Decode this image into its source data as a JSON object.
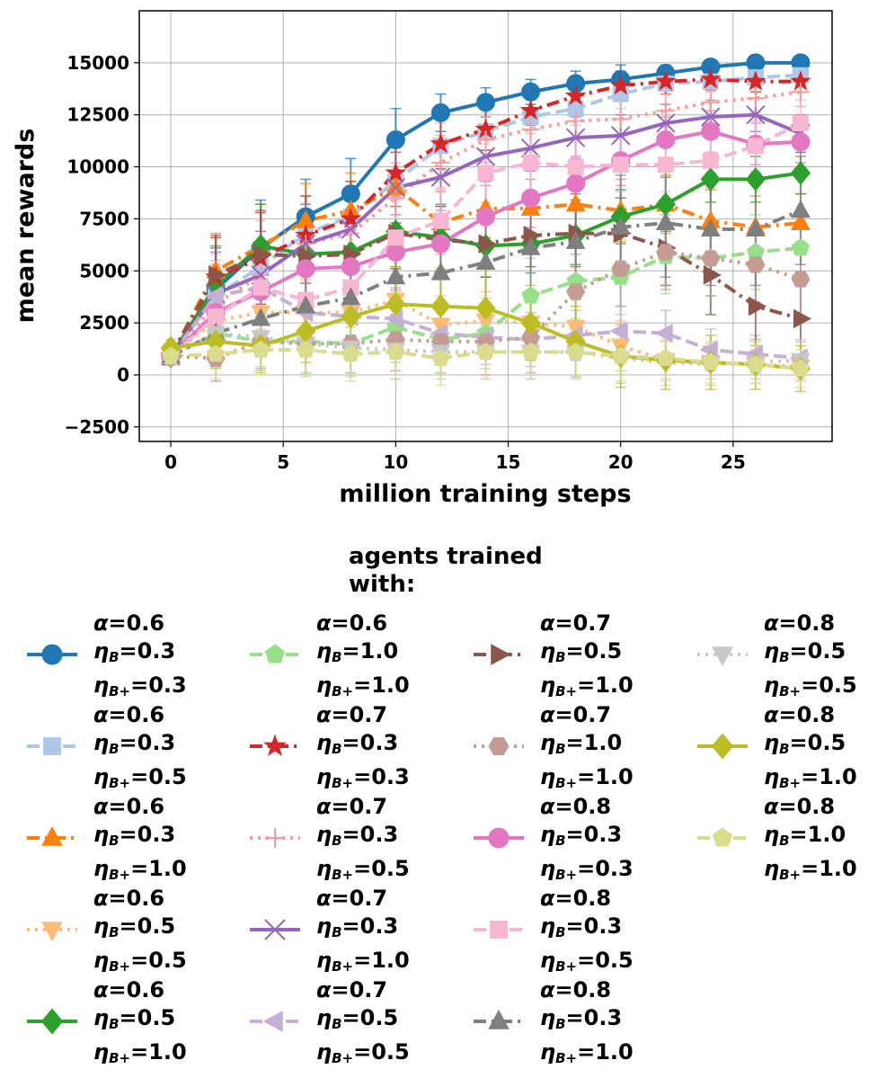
{
  "chart_data": {
    "type": "line",
    "xlabel": "million training steps",
    "ylabel": "mean rewards",
    "xlim": [
      -1.4,
      29.4
    ],
    "ylim": [
      -3200,
      17500
    ],
    "xticks": [
      0,
      5,
      10,
      15,
      20,
      25
    ],
    "yticks": [
      -2500,
      0,
      2500,
      5000,
      7500,
      10000,
      12500,
      15000
    ],
    "xtick_labels": [
      "0",
      "5",
      "10",
      "15",
      "20",
      "25"
    ],
    "ytick_labels": [
      "−2500",
      "0",
      "2500",
      "5000",
      "7500",
      "10000",
      "12500",
      "15000"
    ],
    "grid": true,
    "legend_title": "agents trained with:",
    "x": [
      0,
      2,
      4,
      6,
      8,
      10,
      12,
      14,
      16,
      18,
      20,
      22,
      24,
      26,
      28
    ],
    "series": [
      {
        "alpha": "0.6",
        "eta_b": "0.3",
        "eta_bp": "0.3",
        "color": "#1f77b4",
        "marker": "circle",
        "dash": "solid",
        "values": [
          900,
          4100,
          6100,
          7600,
          8700,
          11300,
          12600,
          13100,
          13600,
          14000,
          14200,
          14500,
          14800,
          15000,
          15000
        ],
        "err": [
          400,
          2000,
          2300,
          1800,
          1700,
          1500,
          900,
          700,
          600,
          600,
          700,
          400,
          300,
          300,
          300
        ]
      },
      {
        "alpha": "0.6",
        "eta_b": "0.3",
        "eta_bp": "0.5",
        "color": "#aec7e8",
        "marker": "square",
        "dash": "dashed",
        "values": [
          900,
          3800,
          5200,
          6800,
          7600,
          9300,
          11000,
          11700,
          12400,
          12800,
          13500,
          14000,
          14100,
          14300,
          14400
        ],
        "err": [
          400,
          2000,
          2200,
          1800,
          1700,
          1600,
          1100,
          900,
          800,
          800,
          700,
          500,
          500,
          500,
          500
        ]
      },
      {
        "alpha": "0.6",
        "eta_b": "0.3",
        "eta_bp": "1.0",
        "color": "#ff7f0e",
        "marker": "triangle-up",
        "dash": "dashdot",
        "values": [
          900,
          5000,
          6200,
          7400,
          7900,
          9000,
          7300,
          8000,
          8000,
          8200,
          7900,
          8200,
          7400,
          7100,
          7300
        ],
        "err": [
          400,
          1800,
          2000,
          1800,
          1800,
          1700,
          1500,
          1400,
          1400,
          1400,
          1500,
          1400,
          1500,
          1500,
          1400
        ]
      },
      {
        "alpha": "0.6",
        "eta_b": "0.5",
        "eta_bp": "0.5",
        "color": "#ffbb78",
        "marker": "triangle-down",
        "dash": "dotted",
        "values": [
          900,
          2600,
          3000,
          3000,
          3000,
          3600,
          2400,
          2600,
          2500,
          2300,
          1400,
          700,
          600,
          500,
          400
        ],
        "err": [
          400,
          1500,
          1600,
          1500,
          1500,
          1500,
          1400,
          1400,
          1400,
          1300,
          1200,
          900,
          800,
          700,
          600
        ]
      },
      {
        "alpha": "0.6",
        "eta_b": "0.5",
        "eta_bp": "1.0",
        "color": "#2ca02c",
        "marker": "diamond",
        "dash": "solid",
        "values": [
          900,
          4300,
          6200,
          5800,
          5900,
          6900,
          6600,
          6200,
          6300,
          6700,
          7600,
          8200,
          9400,
          9400,
          9700
        ],
        "err": [
          400,
          1900,
          2000,
          2000,
          1900,
          1700,
          1600,
          1500,
          1400,
          1400,
          1300,
          1300,
          1100,
          1100,
          1000
        ]
      },
      {
        "alpha": "0.6",
        "eta_b": "1.0",
        "eta_bp": "1.0",
        "color": "#98df8a",
        "marker": "pentagon",
        "dash": "dashed",
        "values": [
          900,
          2000,
          1600,
          1600,
          1500,
          2300,
          1700,
          2000,
          3800,
          4500,
          4700,
          5700,
          5600,
          5900,
          6100
        ],
        "err": [
          400,
          1400,
          1400,
          1600,
          1500,
          1700,
          1700,
          1700,
          1800,
          1800,
          1800,
          1800,
          1800,
          1800,
          1800
        ]
      },
      {
        "alpha": "0.7",
        "eta_b": "0.3",
        "eta_bp": "0.3",
        "color": "#d62728",
        "marker": "star",
        "dash": "dashdot",
        "values": [
          900,
          4700,
          5600,
          6700,
          7500,
          9700,
          11100,
          11800,
          12700,
          13400,
          13900,
          14100,
          14200,
          14100,
          14100
        ],
        "err": [
          400,
          1900,
          2200,
          1900,
          1800,
          1600,
          1200,
          1000,
          900,
          800,
          700,
          600,
          500,
          500,
          500
        ]
      },
      {
        "alpha": "0.7",
        "eta_b": "0.3",
        "eta_bp": "0.5",
        "color": "#ff9896",
        "marker": "plus",
        "dash": "dotted",
        "values": [
          900,
          3400,
          4800,
          6300,
          6800,
          8500,
          10200,
          11300,
          11800,
          12200,
          12300,
          12700,
          13100,
          13300,
          13600
        ],
        "err": [
          400,
          1900,
          2100,
          1900,
          1900,
          1700,
          1300,
          1100,
          1000,
          900,
          900,
          800,
          700,
          700,
          700
        ]
      },
      {
        "alpha": "0.7",
        "eta_b": "0.3",
        "eta_bp": "1.0",
        "color": "#9467bd",
        "marker": "x",
        "dash": "solid",
        "values": [
          900,
          3900,
          4800,
          6300,
          7000,
          9000,
          9500,
          10500,
          10900,
          11400,
          11500,
          12100,
          12400,
          12500,
          11600
        ],
        "err": [
          400,
          2000,
          2100,
          1900,
          1800,
          1700,
          1400,
          1200,
          1100,
          1000,
          1000,
          900,
          800,
          800,
          900
        ]
      },
      {
        "alpha": "0.7",
        "eta_b": "0.5",
        "eta_bp": "0.5",
        "color": "#c5b0d5",
        "marker": "triangle-left",
        "dash": "dashed",
        "values": [
          900,
          3800,
          4200,
          3000,
          2800,
          2700,
          2000,
          1800,
          1700,
          1900,
          2100,
          2000,
          1200,
          1000,
          800
        ],
        "err": [
          400,
          1700,
          1800,
          1600,
          1500,
          1500,
          1400,
          1300,
          1300,
          1200,
          1200,
          1100,
          1000,
          900,
          800
        ]
      },
      {
        "alpha": "0.7",
        "eta_b": "0.5",
        "eta_bp": "1.0",
        "color": "#8c564b",
        "marker": "triangle-right",
        "dash": "dashdot",
        "values": [
          900,
          4800,
          5800,
          5700,
          5800,
          6800,
          6500,
          6300,
          6700,
          6800,
          6800,
          6100,
          4800,
          3300,
          2700
        ],
        "err": [
          400,
          1900,
          2100,
          1900,
          1900,
          1700,
          1600,
          1600,
          1500,
          1600,
          1700,
          1800,
          1900,
          1900,
          1800
        ]
      },
      {
        "alpha": "0.7",
        "eta_b": "1.0",
        "eta_bp": "1.0",
        "color": "#c49c94",
        "marker": "hexagon",
        "dash": "dotted",
        "values": [
          900,
          800,
          1600,
          1500,
          1500,
          1700,
          1600,
          1600,
          1800,
          4000,
          5100,
          5900,
          5600,
          5300,
          4600
        ],
        "err": [
          400,
          1100,
          1300,
          1400,
          1400,
          1500,
          1500,
          1600,
          1700,
          1800,
          1800,
          1800,
          1800,
          1800,
          1800
        ]
      },
      {
        "alpha": "0.8",
        "eta_b": "0.3",
        "eta_bp": "0.3",
        "color": "#e377c2",
        "marker": "circle",
        "dash": "solid",
        "values": [
          900,
          3000,
          4000,
          5100,
          5200,
          5900,
          6300,
          7600,
          8500,
          9200,
          10300,
          11300,
          11700,
          11100,
          11200
        ],
        "err": [
          400,
          1800,
          2000,
          1900,
          1900,
          1800,
          1600,
          1500,
          1400,
          1300,
          1200,
          1100,
          1000,
          1000,
          1000
        ]
      },
      {
        "alpha": "0.8",
        "eta_b": "0.3",
        "eta_bp": "0.5",
        "color": "#f7b6d2",
        "marker": "square",
        "dash": "dashed",
        "values": [
          900,
          2800,
          4200,
          3600,
          4200,
          6600,
          7400,
          9700,
          10200,
          10000,
          10100,
          10100,
          10300,
          11000,
          12100
        ],
        "err": [
          400,
          1800,
          2000,
          1900,
          1900,
          1800,
          1600,
          1400,
          1400,
          1300,
          1300,
          1300,
          1300,
          1200,
          1100
        ]
      },
      {
        "alpha": "0.8",
        "eta_b": "0.3",
        "eta_bp": "1.0",
        "color": "#7f7f7f",
        "marker": "triangle-up",
        "dash": "dashdot",
        "values": [
          900,
          2000,
          2700,
          3300,
          3700,
          4700,
          4900,
          5400,
          6100,
          6400,
          7100,
          7300,
          7000,
          7000,
          7900
        ],
        "err": [
          400,
          1600,
          1800,
          1800,
          1800,
          1800,
          1800,
          2000,
          2200,
          2300,
          2500,
          2600,
          2700,
          2700,
          2600
        ]
      },
      {
        "alpha": "0.8",
        "eta_b": "0.5",
        "eta_bp": "0.5",
        "color": "#c7c7c7",
        "marker": "triangle-down",
        "dash": "dotted",
        "values": [
          900,
          2000,
          1800,
          1500,
          1300,
          1200,
          1100,
          1100,
          1100,
          1100,
          800,
          600,
          500,
          600,
          700
        ],
        "err": [
          400,
          1400,
          1400,
          1400,
          1400,
          1400,
          1300,
          1300,
          1300,
          1300,
          1200,
          1100,
          1000,
          1000,
          1000
        ]
      },
      {
        "alpha": "0.8",
        "eta_b": "0.5",
        "eta_bp": "1.0",
        "color": "#bcbd22",
        "marker": "diamond",
        "dash": "solid",
        "values": [
          1300,
          1600,
          1400,
          2100,
          2800,
          3400,
          3300,
          3200,
          2500,
          1600,
          900,
          700,
          600,
          500,
          300
        ],
        "err": [
          400,
          1300,
          1300,
          1500,
          1700,
          1800,
          1800,
          1900,
          1800,
          1700,
          1500,
          1400,
          1300,
          1200,
          1100
        ]
      },
      {
        "alpha": "0.8",
        "eta_b": "1.0",
        "eta_bp": "1.0",
        "color": "#dbdb8d",
        "marker": "pentagon",
        "dash": "dashed",
        "values": [
          900,
          1000,
          1200,
          1200,
          1000,
          1100,
          800,
          1100,
          1100,
          1100,
          900,
          800,
          600,
          500,
          300
        ],
        "err": [
          400,
          1200,
          1200,
          1300,
          1300,
          1300,
          1300,
          1300,
          1300,
          1300,
          1200,
          1100,
          1000,
          900,
          900
        ]
      }
    ]
  }
}
